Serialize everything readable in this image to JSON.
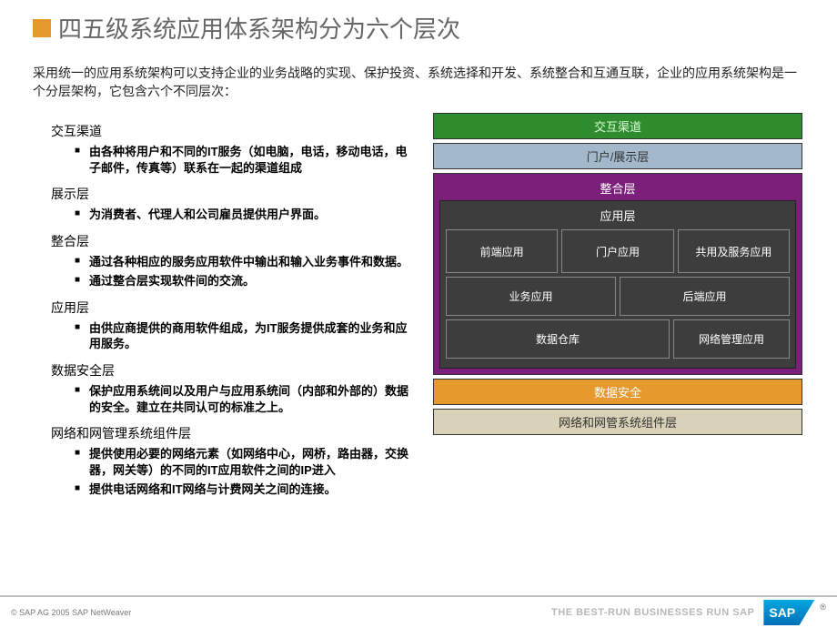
{
  "title_square_color": "#e69a2e",
  "title": "四五级系统应用体系架构分为六个层次",
  "intro": "采用统一的应用系统架构可以支持企业的业务战略的实现、保护投资、系统选择和开发、系统整合和互通互联，企业的应用系统架构是一个分层架构，它包含六个不同层次：",
  "sections": [
    {
      "title": "交互渠道",
      "items": [
        "由各种将用户和不同的IT服务（如电脑，电话，移动电话，电子邮件，传真等）联系在一起的渠道组成"
      ]
    },
    {
      "title": "展示层",
      "items": [
        "为消费者、代理人和公司雇员提供用户界面。"
      ]
    },
    {
      "title": "整合层",
      "items": [
        "通过各种相应的服务应用软件中输出和输入业务事件和数据。",
        "通过整合层实现软件间的交流。"
      ]
    },
    {
      "title": "应用层",
      "items": [
        "由供应商提供的商用软件组成，为IT服务提供成套的业务和应用服务。"
      ]
    },
    {
      "title": "数据安全层",
      "items": [
        "保护应用系统间以及用户与应用系统间（内部和外部的）数据的安全。建立在共同认可的标准之上。"
      ]
    },
    {
      "title": "网络和网管理系统组件层",
      "items": [
        "提供使用必要的网络元素（如网络中心，网桥，路由器，交换器，网关等）的不同的IT应用软件之间的IP进入",
        "提供电话网络和IT网络与计费网关之间的连接。"
      ]
    }
  ],
  "diagram": {
    "layer1": {
      "label": "交互渠道",
      "bg": "#2e8b2e",
      "fg": "#b8ffb8"
    },
    "layer2": {
      "label": "门户/展示层",
      "bg": "#a4b8cc",
      "fg": "#333333"
    },
    "purple_label": "整合层",
    "dark_label": "应用层",
    "row1": [
      "前端应用",
      "门户应用",
      "共用及服务应用"
    ],
    "row2": [
      "业务应用",
      "后端应用"
    ],
    "row3": [
      "数据仓库",
      "网络管理应用"
    ],
    "layer_orange": {
      "label": "数据安全",
      "bg": "#e69a2e"
    },
    "layer_beige": {
      "label": "网络和网管系统组件层",
      "bg": "#d9d2b8",
      "fg": "#333333"
    }
  },
  "footer": {
    "copyright": "© SAP AG 2005 SAP NetWeaver",
    "tagline": "THE BEST-RUN BUSINESSES RUN SAP",
    "logo_text": "SAP"
  }
}
